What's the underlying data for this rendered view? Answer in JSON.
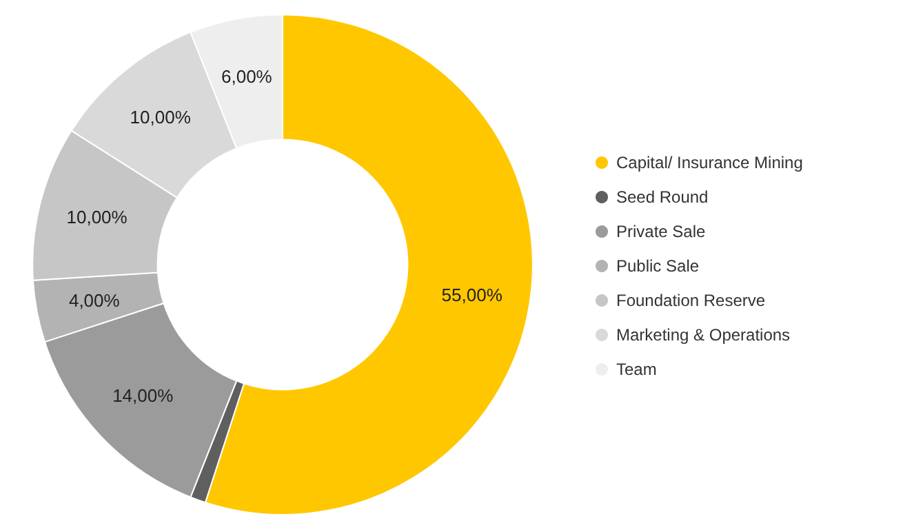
{
  "chart_data": {
    "type": "donut",
    "categories": [
      "Capital/ Insurance Mining",
      "Seed Round",
      "Private Sale",
      "Public Sale",
      "Foundation Reserve",
      "Marketing & Operations",
      "Team"
    ],
    "values": [
      55,
      1,
      14,
      4,
      10,
      10,
      6
    ],
    "value_labels": [
      "55,00%",
      null,
      "14,00%",
      "4,00%",
      "10,00%",
      "10,00%",
      "6,00%"
    ],
    "colors": [
      "#ffc700",
      "#5f5f5f",
      "#9b9b9b",
      "#b3b3b3",
      "#c6c6c6",
      "#d9d9d9",
      "#eeeeee"
    ],
    "legend": "right"
  }
}
